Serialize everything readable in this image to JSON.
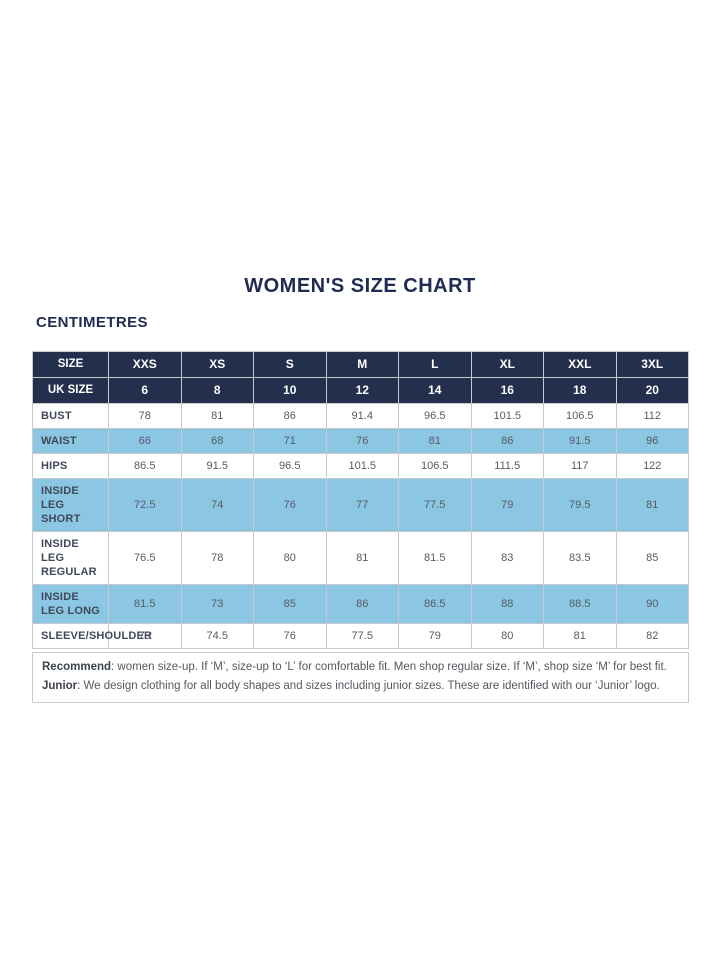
{
  "title": "WOMEN'S SIZE CHART",
  "unit_label": "CENTIMETRES",
  "colors": {
    "header_navy": "#242f4e",
    "stripe_light_blue": "#8bc6e3",
    "title_navy": "#1f2b50"
  },
  "table": {
    "header_rows": [
      {
        "name": "size-header-row",
        "cells": [
          "SIZE",
          "XXS",
          "XS",
          "S",
          "M",
          "L",
          "XL",
          "XXL",
          "3XL"
        ]
      },
      {
        "name": "uk-size-row",
        "cells": [
          "UK SIZE",
          "6",
          "8",
          "10",
          "12",
          "14",
          "16",
          "18",
          "20"
        ]
      }
    ],
    "rows": [
      {
        "label": "BUST",
        "values": [
          "78",
          "81",
          "86",
          "91.4",
          "96.5",
          "101.5",
          "106.5",
          "112"
        ]
      },
      {
        "label": "WAIST",
        "values": [
          "66",
          "68",
          "71",
          "76",
          "81",
          "86",
          "91.5",
          "96"
        ]
      },
      {
        "label": "HIPS",
        "values": [
          "86.5",
          "91.5",
          "96.5",
          "101.5",
          "106.5",
          "111.5",
          "117",
          "122"
        ]
      },
      {
        "label": "INSIDE LEG SHORT",
        "values": [
          "72.5",
          "74",
          "76",
          "77",
          "77.5",
          "79",
          "79.5",
          "81"
        ]
      },
      {
        "label": "INSIDE LEG REGULAR",
        "values": [
          "76.5",
          "78",
          "80",
          "81",
          "81.5",
          "83",
          "83.5",
          "85"
        ]
      },
      {
        "label": "INSIDE LEG LONG",
        "values": [
          "81.5",
          "73",
          "85",
          "86",
          "86.5",
          "88",
          "88.5",
          "90"
        ]
      },
      {
        "label": "SLEEVE/SHOULDER",
        "values": [
          "73",
          "74.5",
          "76",
          "77.5",
          "79",
          "80",
          "81",
          "82"
        ]
      }
    ]
  },
  "notes": [
    {
      "label": "Recommend",
      "text": ": women size-up. If ‘M’, size-up to ‘L’ for comfortable fit. Men shop regular size. If ‘M’, shop size ‘M’ for best fit."
    },
    {
      "label": "Junior",
      "text": ": We design clothing for all body shapes and sizes including junior sizes. These are identified with our ‘Junior’ logo."
    }
  ]
}
